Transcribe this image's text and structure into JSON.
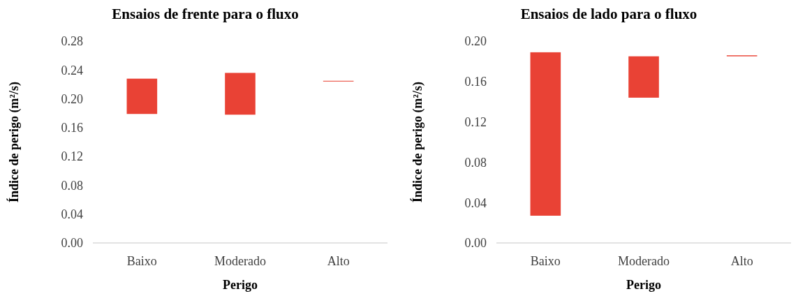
{
  "chart_data": [
    {
      "type": "bar",
      "title": "Ensaios de frente para o fluxo",
      "xlabel": "Perigo",
      "ylabel": "Índice de perigo (m²/s)",
      "categories": [
        "Baixo",
        "Moderado",
        "Alto"
      ],
      "base": [
        0.179,
        0.178,
        0.224
      ],
      "values": [
        0.049,
        0.058,
        0.001
      ],
      "color": "#e94235",
      "ylim": [
        0,
        0.28
      ],
      "yticks": [
        {
          "value": 0,
          "label": "0.00"
        },
        {
          "value": 0.04,
          "label": "0.04"
        },
        {
          "value": 0.08,
          "label": "0.08"
        },
        {
          "value": 0.12,
          "label": "0.12"
        },
        {
          "value": 0.16,
          "label": "0.16"
        },
        {
          "value": 0.2,
          "label": "0.20"
        },
        {
          "value": 0.24,
          "label": "0.24"
        },
        {
          "value": 0.28,
          "label": "0.28"
        }
      ],
      "grid": false
    },
    {
      "type": "bar",
      "title": "Ensaios de lado para o fluxo",
      "xlabel": "Perigo",
      "ylabel": "Índice de perigo (m²/s)",
      "categories": [
        "Baixo",
        "Moderado",
        "Alto"
      ],
      "base": [
        0.027,
        0.144,
        0.185
      ],
      "values": [
        0.162,
        0.041,
        0.001
      ],
      "color": "#e94235",
      "ylim": [
        0,
        0.2
      ],
      "yticks": [
        {
          "value": 0,
          "label": "0.00"
        },
        {
          "value": 0.04,
          "label": "0.04"
        },
        {
          "value": 0.08,
          "label": "0.08"
        },
        {
          "value": 0.12,
          "label": "0.12"
        },
        {
          "value": 0.16,
          "label": "0.16"
        },
        {
          "value": 0.2,
          "label": "0.20"
        }
      ],
      "grid": false
    }
  ]
}
